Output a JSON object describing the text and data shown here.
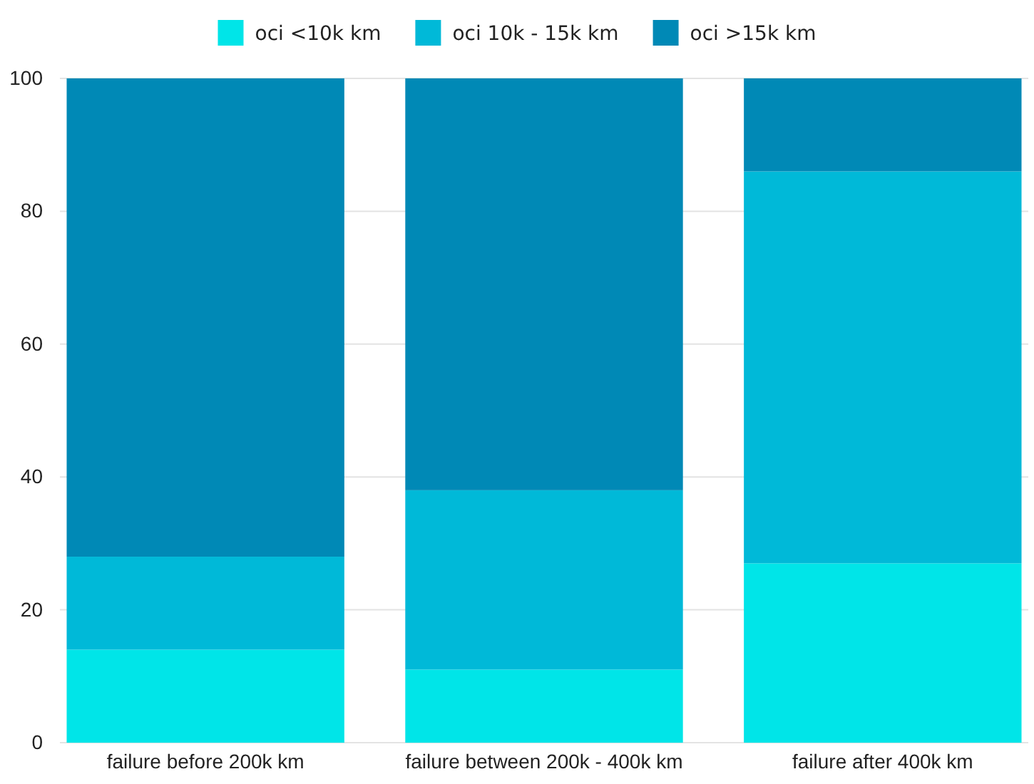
{
  "chart_data": {
    "type": "bar",
    "stacked": true,
    "categories": [
      "failure before 200k km",
      "failure between 200k - 400k km",
      "failure after 400k km"
    ],
    "series": [
      {
        "name": "oci <10k km",
        "color": "#00e5e8",
        "values": [
          14,
          11,
          27
        ]
      },
      {
        "name": "oci 10k - 15k km",
        "color": "#00b9d8",
        "values": [
          14,
          27,
          59
        ]
      },
      {
        "name": "oci >15k km",
        "color": "#0089b6",
        "values": [
          72,
          62,
          14
        ]
      }
    ],
    "ylim": [
      0,
      100
    ],
    "yticks": [
      0,
      20,
      40,
      60,
      80,
      100
    ],
    "grid": "y",
    "legend": "top"
  }
}
